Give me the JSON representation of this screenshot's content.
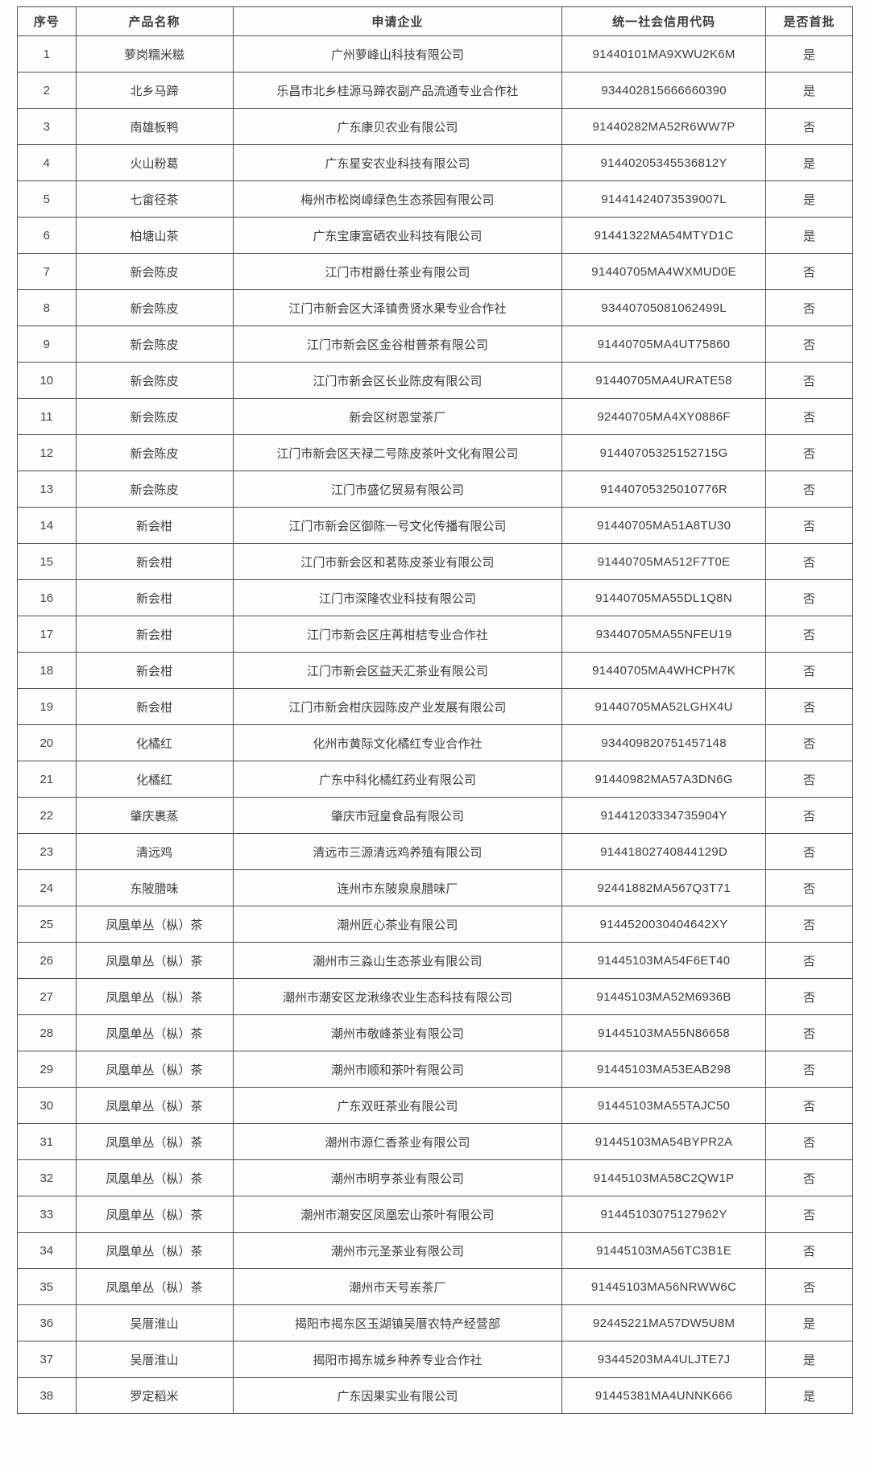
{
  "table": {
    "headers": [
      "序号",
      "产品名称",
      "申请企业",
      "统一社会信用代码",
      "是否首批"
    ],
    "rows": [
      {
        "no": "1",
        "product": "萝岗糯米糍",
        "company": "广州萝峰山科技有限公司",
        "code": "91440101MA9XWU2K6M",
        "first_batch": "是"
      },
      {
        "no": "2",
        "product": "北乡马蹄",
        "company": "乐昌市北乡桂源马蹄农副产品流通专业合作社",
        "code": "934402815666660390",
        "first_batch": "是"
      },
      {
        "no": "3",
        "product": "南雄板鸭",
        "company": "广东康贝农业有限公司",
        "code": "91440282MA52R6WW7P",
        "first_batch": "否"
      },
      {
        "no": "4",
        "product": "火山粉葛",
        "company": "广东星安农业科技有限公司",
        "code": "91440205345536812Y",
        "first_batch": "是"
      },
      {
        "no": "5",
        "product": "七畲径茶",
        "company": "梅州市松岗嶂绿色生态茶园有限公司",
        "code": "91441424073539007L",
        "first_batch": "是"
      },
      {
        "no": "6",
        "product": "柏塘山茶",
        "company": "广东宝康富硒农业科技有限公司",
        "code": "91441322MA54MTYD1C",
        "first_batch": "是"
      },
      {
        "no": "7",
        "product": "新会陈皮",
        "company": "江门市柑爵仕茶业有限公司",
        "code": "91440705MA4WXMUD0E",
        "first_batch": "否"
      },
      {
        "no": "8",
        "product": "新会陈皮",
        "company": "江门市新会区大泽镇贵贤水果专业合作社",
        "code": "93440705081062499L",
        "first_batch": "否"
      },
      {
        "no": "9",
        "product": "新会陈皮",
        "company": "江门市新会区金谷柑普茶有限公司",
        "code": "91440705MA4UT75860",
        "first_batch": "否"
      },
      {
        "no": "10",
        "product": "新会陈皮",
        "company": "江门市新会区长业陈皮有限公司",
        "code": "91440705MA4URATE58",
        "first_batch": "否"
      },
      {
        "no": "11",
        "product": "新会陈皮",
        "company": "新会区树恩堂茶厂",
        "code": "92440705MA4XY0886F",
        "first_batch": "否"
      },
      {
        "no": "12",
        "product": "新会陈皮",
        "company": "江门市新会区天禄二号陈皮茶叶文化有限公司",
        "code": "91440705325152715G",
        "first_batch": "否"
      },
      {
        "no": "13",
        "product": "新会陈皮",
        "company": "江门市盛亿贸易有限公司",
        "code": "91440705325010776R",
        "first_batch": "否"
      },
      {
        "no": "14",
        "product": "新会柑",
        "company": "江门市新会区御陈一号文化传播有限公司",
        "code": "91440705MA51A8TU30",
        "first_batch": "否"
      },
      {
        "no": "15",
        "product": "新会柑",
        "company": "江门市新会区和茗陈皮茶业有限公司",
        "code": "91440705MA512F7T0E",
        "first_batch": "否"
      },
      {
        "no": "16",
        "product": "新会柑",
        "company": "江门市深隆农业科技有限公司",
        "code": "91440705MA55DL1Q8N",
        "first_batch": "否"
      },
      {
        "no": "17",
        "product": "新会柑",
        "company": "江门市新会区庄苒柑桔专业合作社",
        "code": "93440705MA55NFEU19",
        "first_batch": "否"
      },
      {
        "no": "18",
        "product": "新会柑",
        "company": "江门市新会区益天汇茶业有限公司",
        "code": "91440705MA4WHCPH7K",
        "first_batch": "否"
      },
      {
        "no": "19",
        "product": "新会柑",
        "company": "江门市新会柑庆园陈皮产业发展有限公司",
        "code": "91440705MA52LGHX4U",
        "first_batch": "否"
      },
      {
        "no": "20",
        "product": "化橘红",
        "company": "化州市黄际文化橘红专业合作社",
        "code": "934409820751457148",
        "first_batch": "否"
      },
      {
        "no": "21",
        "product": "化橘红",
        "company": "广东中科化橘红药业有限公司",
        "code": "91440982MA57A3DN6G",
        "first_batch": "否"
      },
      {
        "no": "22",
        "product": "肇庆裹蒸",
        "company": "肇庆市冠皇食品有限公司",
        "code": "91441203334735904Y",
        "first_batch": "否"
      },
      {
        "no": "23",
        "product": "清远鸡",
        "company": "清远市三源清远鸡养殖有限公司",
        "code": "91441802740844129D",
        "first_batch": "否"
      },
      {
        "no": "24",
        "product": "东陂腊味",
        "company": "连州市东陂泉泉腊味厂",
        "code": "92441882MA567Q3T71",
        "first_batch": "否"
      },
      {
        "no": "25",
        "product": "凤凰单丛（枞）茶",
        "company": "潮州匠心茶业有限公司",
        "code": "9144520030404642XY",
        "first_batch": "否"
      },
      {
        "no": "26",
        "product": "凤凰单丛（枞）茶",
        "company": "潮州市三淼山生态茶业有限公司",
        "code": "91445103MA54F6ET40",
        "first_batch": "否"
      },
      {
        "no": "27",
        "product": "凤凰单丛（枞）茶",
        "company": "潮州市潮安区龙湫缘农业生态科技有限公司",
        "code": "91445103MA52M6936B",
        "first_batch": "否"
      },
      {
        "no": "28",
        "product": "凤凰单丛（枞）茶",
        "company": "潮州市敬峰茶业有限公司",
        "code": "91445103MA55N86658",
        "first_batch": "否"
      },
      {
        "no": "29",
        "product": "凤凰单丛（枞）茶",
        "company": "潮州市顺和茶叶有限公司",
        "code": "91445103MA53EAB298",
        "first_batch": "否"
      },
      {
        "no": "30",
        "product": "凤凰单丛（枞）茶",
        "company": "广东双旺茶业有限公司",
        "code": "91445103MA55TAJC50",
        "first_batch": "否"
      },
      {
        "no": "31",
        "product": "凤凰单丛（枞）茶",
        "company": "潮州市源仁香茶业有限公司",
        "code": "91445103MA54BYPR2A",
        "first_batch": "否"
      },
      {
        "no": "32",
        "product": "凤凰单丛（枞）茶",
        "company": "潮州市明亨茶业有限公司",
        "code": "91445103MA58C2QW1P",
        "first_batch": "否"
      },
      {
        "no": "33",
        "product": "凤凰单丛（枞）茶",
        "company": "潮州市潮安区凤凰宏山茶叶有限公司",
        "code": "91445103075127962Y",
        "first_batch": "否"
      },
      {
        "no": "34",
        "product": "凤凰单丛（枞）茶",
        "company": "潮州市元圣茶业有限公司",
        "code": "91445103MA56TC3B1E",
        "first_batch": "否"
      },
      {
        "no": "35",
        "product": "凤凰单丛（枞）茶",
        "company": "潮州市天号岽茶厂",
        "code": "91445103MA56NRWW6C",
        "first_batch": "否"
      },
      {
        "no": "36",
        "product": "吴厝淮山",
        "company": "揭阳市揭东区玉湖镇吴厝农特产经营部",
        "code": "92445221MA57DW5U8M",
        "first_batch": "是"
      },
      {
        "no": "37",
        "product": "吴厝淮山",
        "company": "揭阳市揭东城乡种养专业合作社",
        "code": "93445203MA4ULJTE7J",
        "first_batch": "是"
      },
      {
        "no": "38",
        "product": "罗定稻米",
        "company": "广东因果实业有限公司",
        "code": "91445381MA4UNNK666",
        "first_batch": "是"
      }
    ]
  }
}
